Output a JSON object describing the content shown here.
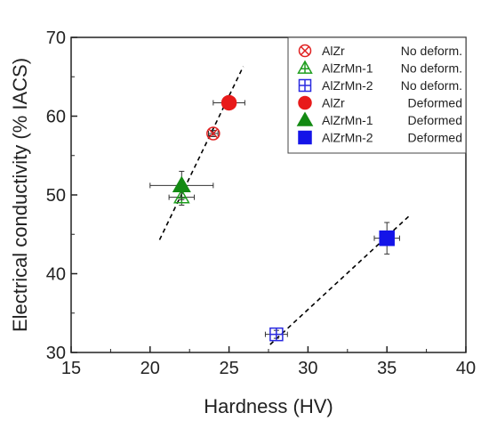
{
  "chart_data": {
    "type": "scatter",
    "xlabel": "Hardness (HV)",
    "ylabel": "Electrical conductivity (% IACS)",
    "xlim": [
      15,
      40
    ],
    "ylim": [
      30,
      70
    ],
    "xticks": [
      15,
      20,
      25,
      30,
      35,
      40
    ],
    "yticks": [
      30,
      40,
      50,
      60,
      70
    ],
    "legend_position": "top-right",
    "grid": false,
    "series": [
      {
        "name": "AlZr",
        "state": "No deform.",
        "marker": "circle-x",
        "filled": false,
        "color": "#e02020",
        "points": [
          {
            "x": 24.0,
            "y": 57.8,
            "xerr": 0.3,
            "yerr": 0.4
          }
        ]
      },
      {
        "name": "AlZrMn-1",
        "state": "No deform.",
        "marker": "triangle-plus",
        "filled": false,
        "color": "#1f9e1f",
        "points": [
          {
            "x": 22.0,
            "y": 49.7,
            "xerr": 0.8,
            "yerr": 1.0
          }
        ]
      },
      {
        "name": "AlZrMn-2",
        "state": "No deform.",
        "marker": "square-plus",
        "filled": false,
        "color": "#2a2ae0",
        "points": [
          {
            "x": 28.0,
            "y": 32.3,
            "xerr": 0.7,
            "yerr": 0.5
          }
        ]
      },
      {
        "name": "AlZr",
        "state": "Deformed",
        "marker": "circle",
        "filled": true,
        "color": "#e81a1a",
        "points": [
          {
            "x": 25.0,
            "y": 61.7,
            "xerr": 1.0,
            "yerr": 0.5
          }
        ]
      },
      {
        "name": "AlZrMn-1",
        "state": "Deformed",
        "marker": "triangle",
        "filled": true,
        "color": "#138a13",
        "points": [
          {
            "x": 22.0,
            "y": 51.2,
            "xerr": 2.0,
            "yerr": 1.8
          }
        ]
      },
      {
        "name": "AlZrMn-2",
        "state": "Deformed",
        "marker": "square",
        "filled": true,
        "color": "#1414e8",
        "points": [
          {
            "x": 35.0,
            "y": 44.5,
            "xerr": 0.8,
            "yerr": 2.0
          }
        ]
      }
    ],
    "fit_lines": [
      {
        "style": "dashed",
        "color": "#000000",
        "from": [
          20.6,
          44.3
        ],
        "to": [
          25.9,
          66.3
        ]
      },
      {
        "style": "dashed",
        "color": "#000000",
        "from": [
          27.6,
          31.0
        ],
        "to": [
          36.5,
          47.5
        ]
      }
    ]
  }
}
